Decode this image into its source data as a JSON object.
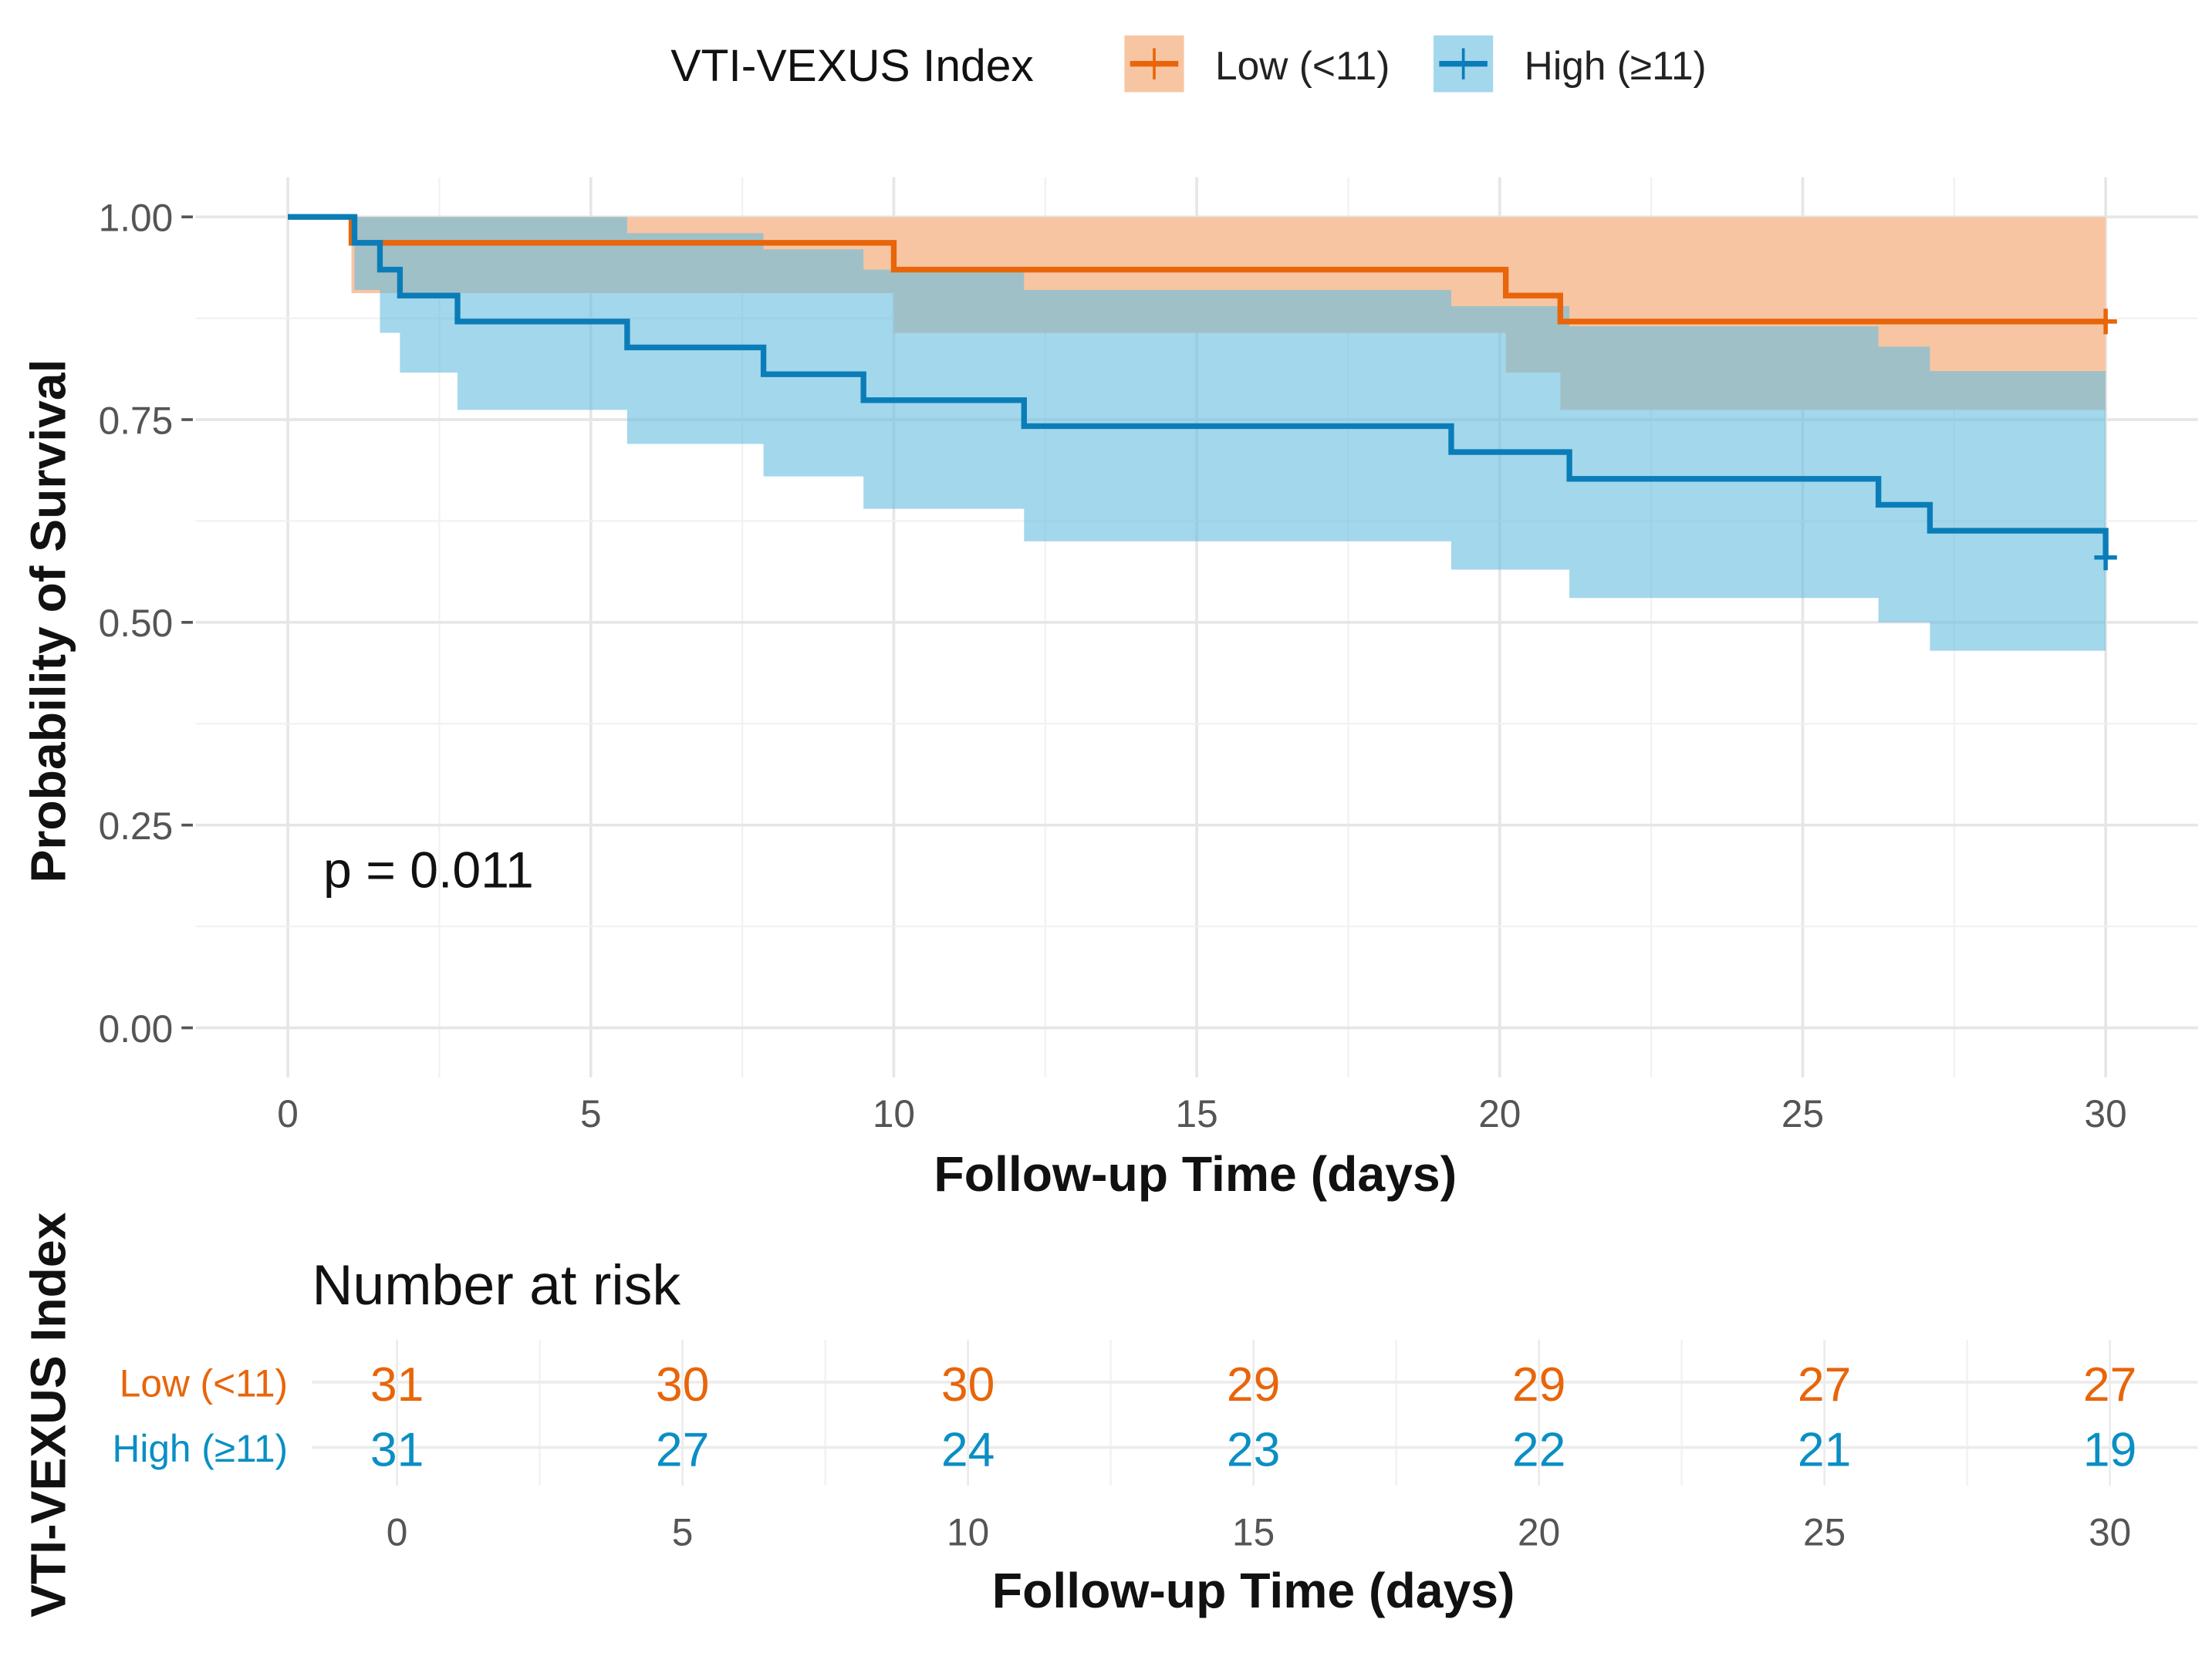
{
  "chart_data": {
    "type": "line",
    "subtype": "kaplan-meier",
    "legend": {
      "title": "VTI-VEXUS Index",
      "placement": "top"
    },
    "xlabel": "Follow-up Time (days)",
    "ylabel": "Probability of Survival",
    "xlim": [
      0,
      30
    ],
    "ylim": [
      0,
      1
    ],
    "xticks": [
      "0",
      "5",
      "10",
      "15",
      "20",
      "25",
      "30"
    ],
    "yticks": [
      "0.00",
      "0.25",
      "0.50",
      "0.75",
      "1.00"
    ],
    "grid": true,
    "annotation": "p = 0.011",
    "series": [
      {
        "name": "Low (<11)",
        "color": "#E8650A",
        "band_color": "#F8C5A3",
        "steps": [
          [
            0,
            1
          ],
          [
            1.05,
            0.968
          ],
          [
            10.0,
            0.935
          ],
          [
            20.1,
            0.903
          ],
          [
            21.0,
            0.871
          ],
          [
            30,
            0.871
          ]
        ],
        "ci_steps": [
          [
            0,
            1,
            1
          ],
          [
            1.05,
            0.906,
            1
          ],
          [
            10.0,
            0.857,
            1
          ],
          [
            20.1,
            0.808,
            1
          ],
          [
            21.0,
            0.762,
            1
          ]
        ],
        "censor": [
          [
            30,
            0.871
          ]
        ]
      },
      {
        "name": "High (≥11)",
        "color": "#0A7DB8",
        "band_color": "#66BCE0",
        "steps": [
          [
            0,
            1
          ],
          [
            1.1,
            0.968
          ],
          [
            1.52,
            0.935
          ],
          [
            1.85,
            0.903
          ],
          [
            2.8,
            0.871
          ],
          [
            5.6,
            0.839
          ],
          [
            7.85,
            0.806
          ],
          [
            9.5,
            0.774
          ],
          [
            12.15,
            0.742
          ],
          [
            19.2,
            0.71
          ],
          [
            21.15,
            0.677
          ],
          [
            26.25,
            0.645
          ],
          [
            27.1,
            0.613
          ],
          [
            30,
            0.58
          ]
        ],
        "ci_steps": [
          [
            0,
            1,
            1
          ],
          [
            1.1,
            0.91,
            1
          ],
          [
            1.52,
            0.857,
            1
          ],
          [
            1.85,
            0.808,
            1
          ],
          [
            2.8,
            0.762,
            1
          ],
          [
            5.6,
            0.72,
            0.98
          ],
          [
            7.85,
            0.68,
            0.96
          ],
          [
            9.5,
            0.64,
            0.935
          ],
          [
            12.15,
            0.6,
            0.91
          ],
          [
            19.2,
            0.565,
            0.89
          ],
          [
            21.15,
            0.53,
            0.865
          ],
          [
            26.25,
            0.5,
            0.84
          ],
          [
            27.1,
            0.465,
            0.81
          ]
        ],
        "censor": [
          [
            30,
            0.58
          ]
        ]
      }
    ],
    "risk_table": {
      "title": "Number at risk",
      "ylabel": "VTI-VEXUS Index",
      "xlabel": "Follow-up Time (days)",
      "times": [
        "0",
        "5",
        "10",
        "15",
        "20",
        "25",
        "30"
      ],
      "rows": [
        {
          "label": "Low (<11)",
          "color": "#E8650A",
          "values": [
            "31",
            "30",
            "30",
            "29",
            "29",
            "27",
            "27"
          ]
        },
        {
          "label": "High (≥11)",
          "color": "#0A8FC4",
          "values": [
            "31",
            "27",
            "24",
            "23",
            "22",
            "21",
            "19"
          ]
        }
      ]
    }
  }
}
